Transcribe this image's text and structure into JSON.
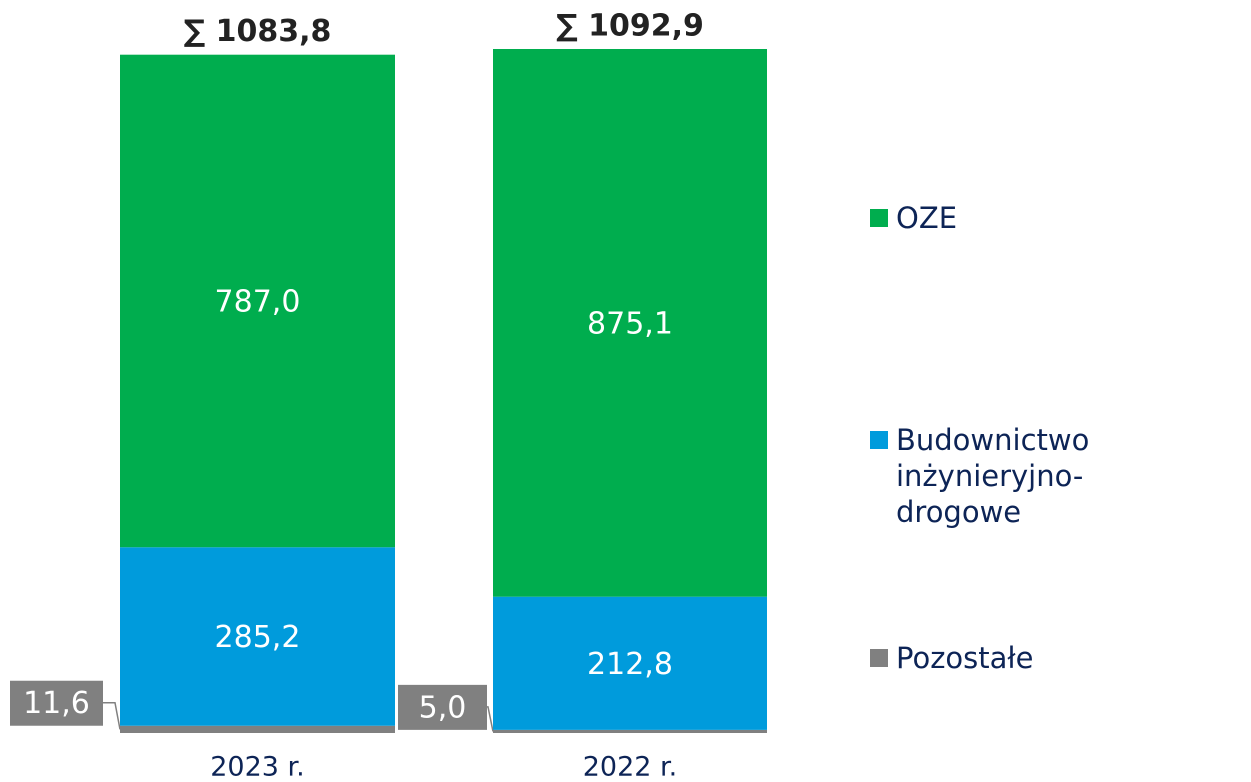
{
  "chart_data": {
    "type": "stacked_bar",
    "categories": [
      "2023 r.",
      "2022 r."
    ],
    "series": [
      {
        "name": "Pozostałe",
        "color": "#808080",
        "values": [
          11.6,
          5.0
        ],
        "value_labels": [
          "11,6",
          "5,0"
        ]
      },
      {
        "name": "Budownictwo inżynieryjno-drogowe",
        "color": "#009bdc",
        "values": [
          285.2,
          212.8
        ],
        "value_labels": [
          "285,2",
          "212,8"
        ]
      },
      {
        "name": "OZE",
        "color": "#00ad4e",
        "values": [
          787.0,
          875.1
        ],
        "value_labels": [
          "787,0",
          "875,1"
        ]
      }
    ],
    "totals": {
      "values": [
        1083.8,
        1092.9
      ],
      "value_labels": [
        "∑ 1083,8",
        "∑ 1092,9"
      ]
    }
  }
}
